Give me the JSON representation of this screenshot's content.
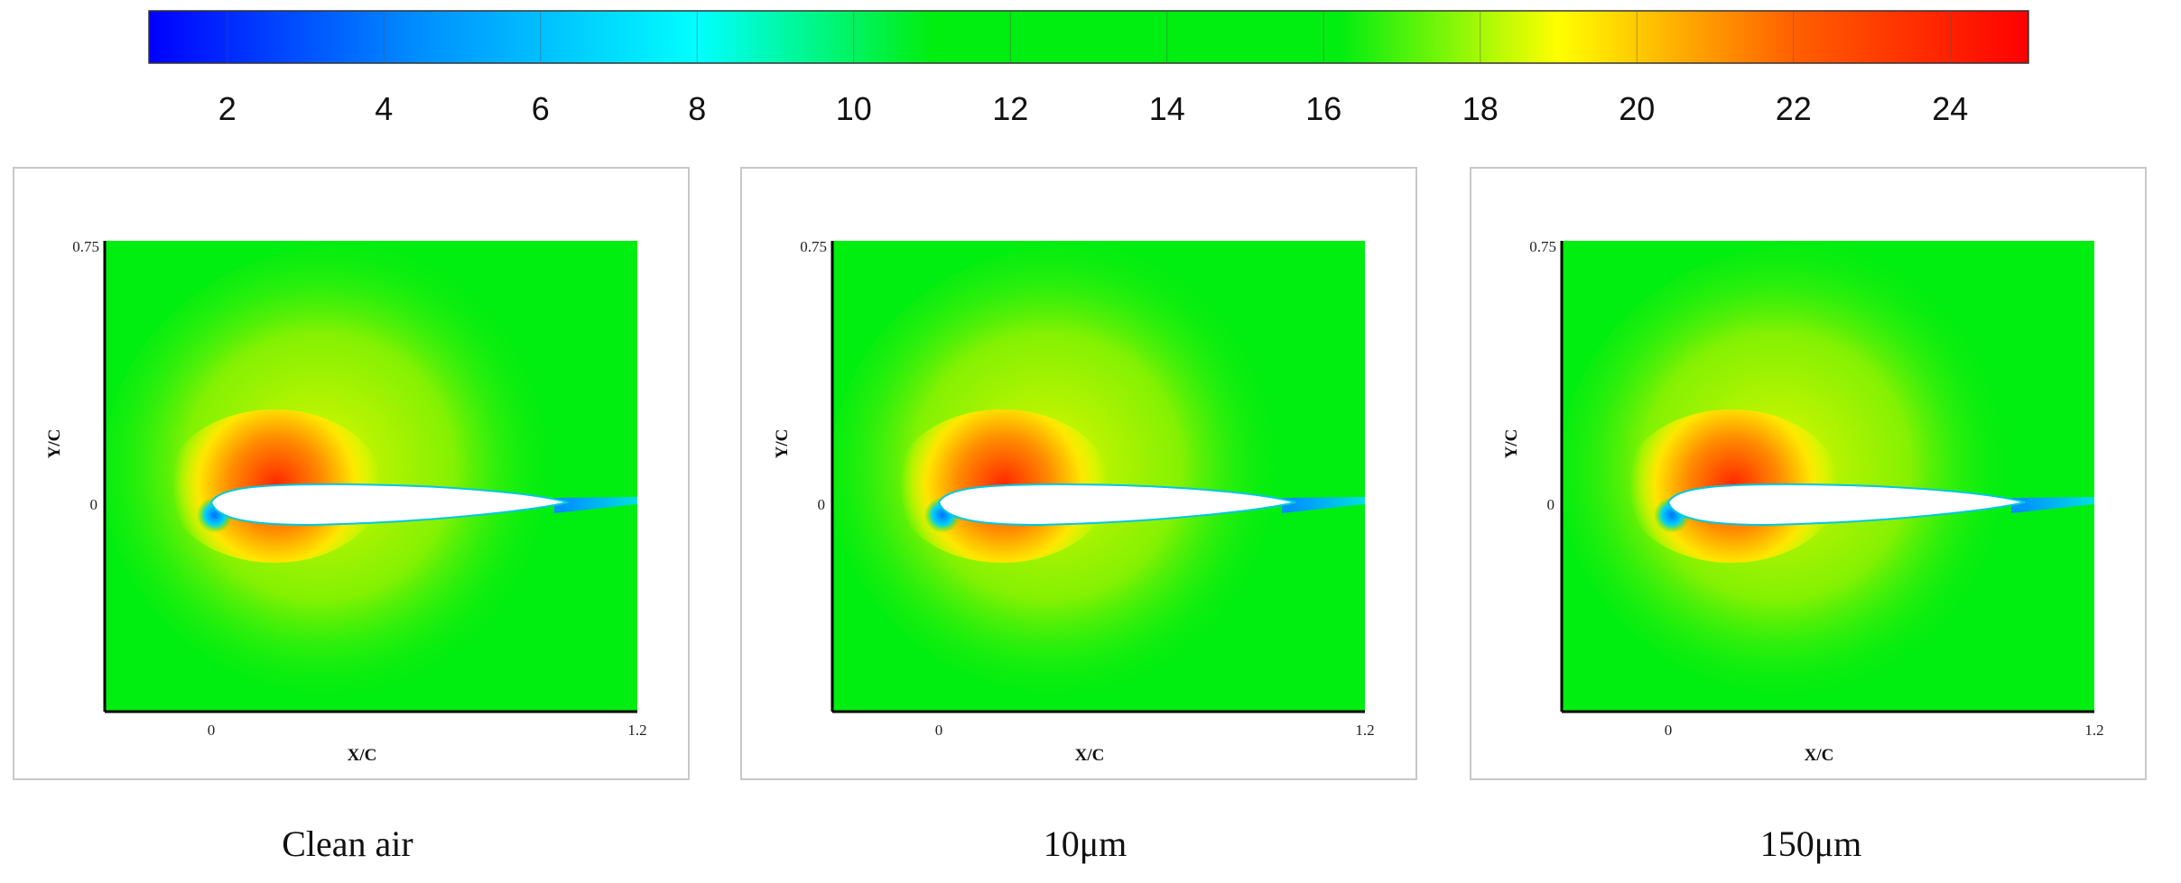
{
  "colorbar": {
    "ticks": [
      "2",
      "4",
      "6",
      "8",
      "10",
      "12",
      "14",
      "16",
      "18",
      "20",
      "22",
      "24"
    ],
    "range": [
      1,
      25
    ],
    "stops": [
      {
        "value": 1,
        "color": "#0000ff"
      },
      {
        "value": 4.5,
        "color": "#0090ff"
      },
      {
        "value": 8,
        "color": "#00ffff"
      },
      {
        "value": 11,
        "color": "#00ee10"
      },
      {
        "value": 16.2,
        "color": "#00ee10"
      },
      {
        "value": 19,
        "color": "#ffff00"
      },
      {
        "value": 22,
        "color": "#ff6000"
      },
      {
        "value": 25,
        "color": "#ff0000"
      }
    ]
  },
  "chart_data": [
    {
      "type": "heatmap",
      "caption": "Clean air",
      "xlabel": "X/C",
      "ylabel": "Y/C",
      "x_ticks": [
        "0",
        "1.2"
      ],
      "y_ticks": [
        "0.75",
        "0"
      ]
    },
    {
      "type": "heatmap",
      "caption": "10μm",
      "xlabel": "X/C",
      "ylabel": "Y/C",
      "x_ticks": [
        "0",
        "1.2"
      ],
      "y_ticks": [
        "0.75",
        "0"
      ]
    },
    {
      "type": "heatmap",
      "caption": "150μm",
      "xlabel": "X/C",
      "ylabel": "Y/C",
      "x_ticks": [
        "0",
        "1.2"
      ],
      "y_ticks": [
        "0.75",
        "0"
      ]
    }
  ]
}
